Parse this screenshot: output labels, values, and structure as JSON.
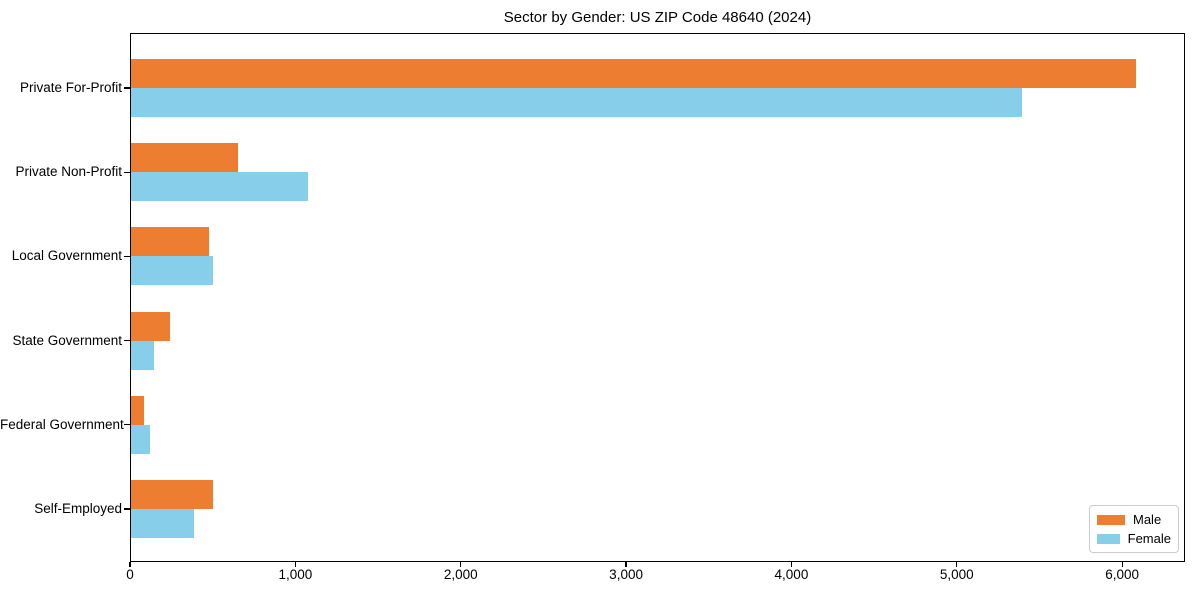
{
  "chart_data": {
    "type": "bar",
    "orientation": "horizontal",
    "title": "Sector by Gender: US ZIP Code 48640 (2024)",
    "categories": [
      "Private For-Profit",
      "Private Non-Profit",
      "Local Government",
      "State Government",
      "Federal Government",
      "Self-Employed"
    ],
    "series": [
      {
        "name": "Male",
        "color": "#ED7D31",
        "values": [
          6085,
          655,
          480,
          240,
          85,
          500
        ]
      },
      {
        "name": "Female",
        "color": "#87CEEB",
        "values": [
          5395,
          1075,
          500,
          145,
          120,
          385
        ]
      }
    ],
    "xlabel": "",
    "ylabel": "",
    "xlim": [
      0,
      6380
    ],
    "x_ticks": [
      0,
      1000,
      2000,
      3000,
      4000,
      5000,
      6000
    ],
    "x_tick_labels": [
      "0",
      "1,000",
      "2,000",
      "3,000",
      "4,000",
      "5,000",
      "6,000"
    ],
    "grid": false,
    "legend": {
      "position": "lower right",
      "entries": [
        "Male",
        "Female"
      ]
    }
  }
}
